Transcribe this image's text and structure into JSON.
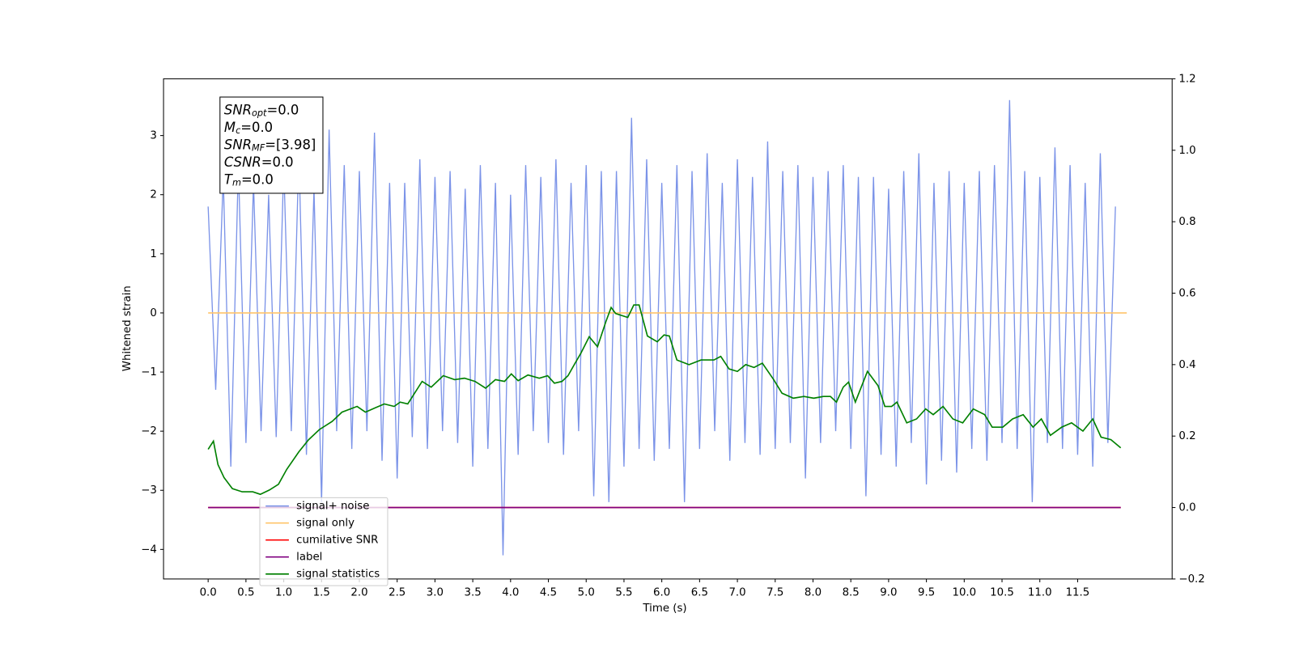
{
  "chart_data": {
    "type": "line",
    "xlabel": "Time (s)",
    "ylabel": "Whitened strain",
    "xlim": [
      -0.59,
      12.75
    ],
    "ylim": [
      -4.5,
      3.96
    ],
    "y2lim": [
      -0.2,
      1.2
    ],
    "xticks": [
      {
        "value": 0,
        "label": "0.0"
      },
      0.5,
      {
        "value": 1,
        "label": "1.0"
      },
      1.5,
      {
        "value": 2,
        "label": "2.0"
      },
      2.5,
      {
        "value": 3,
        "label": "3.0"
      },
      3.5,
      {
        "value": 4,
        "label": "4.0"
      },
      4.5,
      {
        "value": 5,
        "label": "5.0"
      },
      5.5,
      {
        "value": 6,
        "label": "6.0"
      },
      6.5,
      {
        "value": 7,
        "label": "7.0"
      },
      7.5,
      {
        "value": 8,
        "label": "8.0"
      },
      8.5,
      {
        "value": 9,
        "label": "9.0"
      },
      9.5,
      {
        "value": 10,
        "label": "10.0"
      },
      10.5,
      {
        "value": 11,
        "label": "11.0"
      },
      11.5
    ],
    "yticks": [
      {
        "value": -4,
        "label": "−4"
      },
      {
        "value": -3,
        "label": "−3"
      },
      {
        "value": -2,
        "label": "−2"
      },
      {
        "value": -1,
        "label": "−1"
      },
      0,
      1,
      2,
      3
    ],
    "y2ticks": [
      {
        "value": -0.2,
        "label": "−0.2"
      },
      {
        "value": 0,
        "label": "0.0"
      },
      0.2,
      0.4,
      0.6,
      0.8,
      {
        "value": 1,
        "label": "1.0"
      },
      1.2
    ],
    "legend": "lower left",
    "annotation": {
      "lines": [
        {
          "symbol": "SNR",
          "subscript": "opt",
          "text": "=0.0"
        },
        {
          "symbol": "M",
          "subscript": "c",
          "text": "=0.0"
        },
        {
          "symbol": "SNR",
          "subscript": "MF",
          "text": "=[3.98]"
        },
        {
          "symbol": "CSNR",
          "subscript": null,
          "text": "=0.0"
        },
        {
          "symbol": "T",
          "subscript": "m",
          "text": "=0.0"
        }
      ]
    },
    "series": [
      {
        "name": "signal+ noise",
        "color": "#7b93e8",
        "x": [
          0,
          0.1,
          0.2,
          0.3,
          0.4,
          0.5,
          0.6,
          0.7,
          0.8,
          0.9,
          1,
          1.1,
          1.2,
          1.3,
          1.4,
          1.5,
          1.6,
          1.7,
          1.8,
          1.9,
          2,
          2.1,
          2.2,
          2.3,
          2.4,
          2.5,
          2.6,
          2.7,
          2.8,
          2.9,
          3,
          3.1,
          3.2,
          3.3,
          3.4,
          3.5,
          3.6,
          3.7,
          3.8,
          3.9,
          4,
          4.1,
          4.2,
          4.3,
          4.4,
          4.5,
          4.6,
          4.7,
          4.8,
          4.9,
          5,
          5.1,
          5.2,
          5.3,
          5.4,
          5.5,
          5.6,
          5.7,
          5.8,
          5.9,
          6,
          6.1,
          6.2,
          6.3,
          6.4,
          6.5,
          6.6,
          6.7,
          6.8,
          6.9,
          7,
          7.1,
          7.2,
          7.3,
          7.4,
          7.5,
          7.6,
          7.7,
          7.8,
          7.9,
          8,
          8.1,
          8.2,
          8.3,
          8.4,
          8.5,
          8.6,
          8.7,
          8.8,
          8.9,
          9,
          9.1,
          9.2,
          9.3,
          9.4,
          9.5,
          9.6,
          9.7,
          9.8,
          9.9,
          10,
          10.1,
          10.2,
          10.3,
          10.4,
          10.5,
          10.6,
          10.7,
          10.8,
          10.9,
          11,
          11.1,
          11.2,
          11.3,
          11.4,
          11.5,
          11.6,
          11.7,
          11.8,
          11.9,
          12
        ],
        "values": [
          1.8,
          -1.3,
          2.3,
          -2.6,
          2.5,
          -2.2,
          2.2,
          -2.0,
          2.0,
          -2.1,
          2.5,
          -2.0,
          2.7,
          -2.4,
          2.1,
          -3.2,
          3.1,
          -2.0,
          2.5,
          -2.3,
          2.4,
          -2.0,
          3.05,
          -2.5,
          2.2,
          -2.8,
          2.2,
          -2.1,
          2.6,
          -2.3,
          2.3,
          -2.0,
          2.4,
          -2.2,
          2.1,
          -2.6,
          2.5,
          -2.3,
          2.2,
          -4.1,
          2.0,
          -2.4,
          2.5,
          -2.0,
          2.3,
          -2.2,
          2.6,
          -2.4,
          2.2,
          -2.0,
          2.5,
          -3.1,
          2.4,
          -3.2,
          2.4,
          -2.6,
          3.3,
          -2.3,
          2.6,
          -2.5,
          2.2,
          -2.3,
          2.5,
          -3.2,
          2.4,
          -2.3,
          2.7,
          -2.0,
          2.2,
          -2.5,
          2.6,
          -2.2,
          2.3,
          -2.4,
          2.9,
          -2.3,
          2.4,
          -2.2,
          2.5,
          -2.8,
          2.3,
          -2.2,
          2.4,
          -2.0,
          2.5,
          -2.3,
          2.3,
          -3.1,
          2.3,
          -2.4,
          2.1,
          -2.6,
          2.4,
          -2.2,
          2.7,
          -2.9,
          2.2,
          -2.5,
          2.4,
          -2.7,
          2.2,
          -2.3,
          2.4,
          -2.5,
          2.5,
          -2.2,
          3.6,
          -2.3,
          2.4,
          -3.2,
          2.3,
          -2.2,
          2.8,
          -2.3,
          2.5,
          -2.4,
          2.2,
          -2.6,
          2.7,
          -2.2,
          1.8
        ]
      },
      {
        "name": "signal only",
        "color": "#ffc46a",
        "x": [
          0,
          12.15
        ],
        "values": [
          0,
          0
        ]
      },
      {
        "name": "cumilative SNR",
        "color": "#ff0000",
        "axis": "y2",
        "x": [
          0,
          12.07
        ],
        "values": [
          0,
          0
        ]
      },
      {
        "name": "label",
        "color": "#800080",
        "axis": "y2",
        "x": [
          0,
          12.07
        ],
        "values": [
          0,
          0
        ]
      },
      {
        "name": "signal statistics",
        "color": "#008000",
        "axis": "y2",
        "x": [
          0,
          0.07,
          0.13,
          0.21,
          0.32,
          0.45,
          0.59,
          0.69,
          0.81,
          0.93,
          1.04,
          1.2,
          1.33,
          1.47,
          1.64,
          1.77,
          1.97,
          2.08,
          2.21,
          2.33,
          2.46,
          2.54,
          2.64,
          2.74,
          2.83,
          2.95,
          3.11,
          3.26,
          3.39,
          3.53,
          3.67,
          3.8,
          3.92,
          4.01,
          4.1,
          4.23,
          4.38,
          4.49,
          4.58,
          4.68,
          4.76,
          4.84,
          4.93,
          5.04,
          5.15,
          5.26,
          5.33,
          5.39,
          5.55,
          5.63,
          5.7,
          5.81,
          5.94,
          6.03,
          6.1,
          6.2,
          6.36,
          6.52,
          6.69,
          6.78,
          6.89,
          7.0,
          7.11,
          7.22,
          7.33,
          7.48,
          7.59,
          7.74,
          7.88,
          8.01,
          8.14,
          8.23,
          8.31,
          8.4,
          8.47,
          8.56,
          8.72,
          8.86,
          8.95,
          9.04,
          9.11,
          9.24,
          9.37,
          9.49,
          9.59,
          9.72,
          9.85,
          9.98,
          10.12,
          10.27,
          10.37,
          10.51,
          10.64,
          10.78,
          10.91,
          11.02,
          11.14,
          11.29,
          11.42,
          11.57,
          11.7,
          11.81,
          11.94,
          12.07
        ],
        "values": [
          0.163,
          0.186,
          0.12,
          0.084,
          0.053,
          0.044,
          0.044,
          0.037,
          0.049,
          0.065,
          0.107,
          0.156,
          0.19,
          0.218,
          0.241,
          0.267,
          0.283,
          0.267,
          0.279,
          0.29,
          0.283,
          0.295,
          0.29,
          0.323,
          0.353,
          0.337,
          0.369,
          0.358,
          0.362,
          0.353,
          0.334,
          0.358,
          0.353,
          0.374,
          0.355,
          0.371,
          0.362,
          0.369,
          0.348,
          0.353,
          0.369,
          0.399,
          0.432,
          0.478,
          0.45,
          0.52,
          0.56,
          0.543,
          0.532,
          0.567,
          0.567,
          0.48,
          0.464,
          0.483,
          0.48,
          0.413,
          0.4,
          0.413,
          0.413,
          0.423,
          0.388,
          0.381,
          0.4,
          0.392,
          0.404,
          0.358,
          0.32,
          0.306,
          0.311,
          0.306,
          0.311,
          0.311,
          0.295,
          0.337,
          0.351,
          0.295,
          0.381,
          0.341,
          0.283,
          0.283,
          0.295,
          0.237,
          0.248,
          0.276,
          0.26,
          0.283,
          0.248,
          0.237,
          0.276,
          0.26,
          0.225,
          0.225,
          0.248,
          0.26,
          0.225,
          0.248,
          0.202,
          0.225,
          0.237,
          0.214,
          0.248,
          0.197,
          0.19,
          0.167
        ]
      }
    ]
  }
}
